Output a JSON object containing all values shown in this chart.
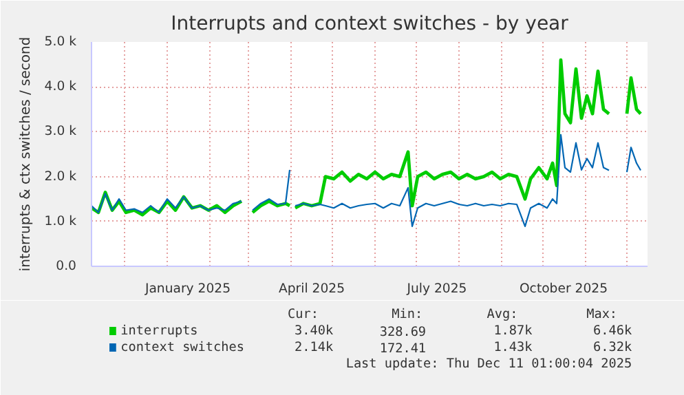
{
  "chart_data": {
    "type": "line",
    "title": "Interrupts and context switches - by year",
    "ylabel": "interrupts & ctx switches / second",
    "x": [
      "2024-11-07",
      "2024-11-12",
      "2024-11-17",
      "2024-11-22",
      "2024-11-27",
      "2024-12-02",
      "2024-12-08",
      "2024-12-14",
      "2024-12-20",
      "2024-12-26",
      "2025-01-01",
      "2025-01-07",
      "2025-01-13",
      "2025-01-19",
      "2025-01-25",
      "2025-01-31",
      "2025-02-06",
      "2025-02-12",
      "2025-02-18",
      "2025-02-24",
      "2025-02-28",
      "2025-03-04",
      "2025-03-10",
      "2025-03-16",
      "2025-03-22",
      "2025-03-28",
      "2025-03-31",
      "2025-04-02",
      "2025-04-04",
      "2025-04-10",
      "2025-04-16",
      "2025-04-22",
      "2025-04-26",
      "2025-05-02",
      "2025-05-08",
      "2025-05-14",
      "2025-05-20",
      "2025-05-26",
      "2025-06-01",
      "2025-06-07",
      "2025-06-13",
      "2025-06-19",
      "2025-06-25",
      "2025-06-28",
      "2025-07-02",
      "2025-07-08",
      "2025-07-14",
      "2025-07-20",
      "2025-07-26",
      "2025-08-01",
      "2025-08-07",
      "2025-08-13",
      "2025-08-19",
      "2025-08-25",
      "2025-08-31",
      "2025-09-06",
      "2025-09-12",
      "2025-09-18",
      "2025-09-22",
      "2025-09-28",
      "2025-10-04",
      "2025-10-08",
      "2025-10-11",
      "2025-10-14",
      "2025-10-17",
      "2025-10-21",
      "2025-10-25",
      "2025-10-29",
      "2025-11-02",
      "2025-11-06",
      "2025-11-10",
      "2025-11-14",
      "2025-11-18",
      "2025-11-22",
      "2025-12-01",
      "2025-12-04",
      "2025-12-08",
      "2025-12-11"
    ],
    "series": [
      {
        "name": "interrupts",
        "color": "#00cc00",
        "values": [
          1300,
          1200,
          1650,
          1250,
          1450,
          1200,
          1250,
          1150,
          1300,
          1200,
          1450,
          1250,
          1550,
          1300,
          1350,
          1250,
          1350,
          1200,
          1350,
          1450,
          null,
          1200,
          1350,
          1450,
          1350,
          1400,
          1350,
          null,
          1300,
          1400,
          1350,
          1400,
          2000,
          1950,
          2100,
          1900,
          2050,
          1950,
          2100,
          1950,
          2050,
          2000,
          2550,
          1350,
          2000,
          2100,
          1950,
          2050,
          2100,
          1950,
          2050,
          1950,
          2000,
          2100,
          1950,
          2050,
          2000,
          1500,
          1950,
          2200,
          1950,
          2300,
          1800,
          4600,
          3400,
          3200,
          4400,
          3300,
          3800,
          3400,
          4350,
          3500,
          3400,
          null,
          3400,
          4200,
          3500,
          3400
        ]
      },
      {
        "name": "context switches",
        "color": "#0066b3",
        "values": [
          1350,
          1200,
          1620,
          1250,
          1500,
          1250,
          1280,
          1200,
          1350,
          1200,
          1500,
          1300,
          1550,
          1300,
          1350,
          1250,
          1300,
          1250,
          1400,
          1450,
          null,
          1250,
          1400,
          1500,
          1380,
          1400,
          2150,
          null,
          1350,
          1400,
          1350,
          1380,
          1350,
          1300,
          1400,
          1300,
          1350,
          1380,
          1400,
          1300,
          1400,
          1350,
          1750,
          890,
          1300,
          1400,
          1350,
          1400,
          1450,
          1380,
          1350,
          1400,
          1350,
          1380,
          1350,
          1400,
          1380,
          890,
          1300,
          1400,
          1300,
          1500,
          1400,
          2930,
          2200,
          2100,
          2750,
          2150,
          2400,
          2200,
          2750,
          2200,
          2140,
          null,
          2100,
          2650,
          2300,
          2140
        ]
      }
    ],
    "xlim": [
      "2024-11-07",
      "2025-12-16"
    ],
    "xticks": [
      {
        "value": "2024-12-01",
        "label": null
      },
      {
        "value": "2025-01-01",
        "label": null
      },
      {
        "value": "2025-01-16",
        "label": "January 2025"
      },
      {
        "value": "2025-02-01",
        "label": null
      },
      {
        "value": "2025-03-01",
        "label": null
      },
      {
        "value": "2025-04-01",
        "label": null
      },
      {
        "value": "2025-04-16",
        "label": "April 2025"
      },
      {
        "value": "2025-05-01",
        "label": null
      },
      {
        "value": "2025-06-01",
        "label": null
      },
      {
        "value": "2025-07-01",
        "label": null
      },
      {
        "value": "2025-07-16",
        "label": "July 2025"
      },
      {
        "value": "2025-08-01",
        "label": null
      },
      {
        "value": "2025-09-01",
        "label": null
      },
      {
        "value": "2025-10-01",
        "label": null
      },
      {
        "value": "2025-10-16",
        "label": "October 2025"
      },
      {
        "value": "2025-11-01",
        "label": null
      },
      {
        "value": "2025-12-01",
        "label": null
      }
    ],
    "ylim": [
      0,
      5000
    ],
    "yticks": [
      {
        "value": 0,
        "label": "0.0"
      },
      {
        "value": 1000,
        "label": "1.0 k"
      },
      {
        "value": 2000,
        "label": "2.0 k"
      },
      {
        "value": 3000,
        "label": "3.0 k"
      },
      {
        "value": 4000,
        "label": "4.0 k"
      },
      {
        "value": 5000,
        "label": "5.0 k"
      }
    ],
    "grid": true,
    "legend": "bottom",
    "line_style": "solid",
    "annotations": [
      "Cur:",
      "Min:",
      "Avg:",
      "Max:",
      "3.40k",
      "328.69",
      "1.87k",
      "6.46k",
      "2.14k",
      "172.41",
      "1.43k",
      "6.32k",
      "Last update: Thu Dec 11 01:00:04 2025"
    ]
  }
}
